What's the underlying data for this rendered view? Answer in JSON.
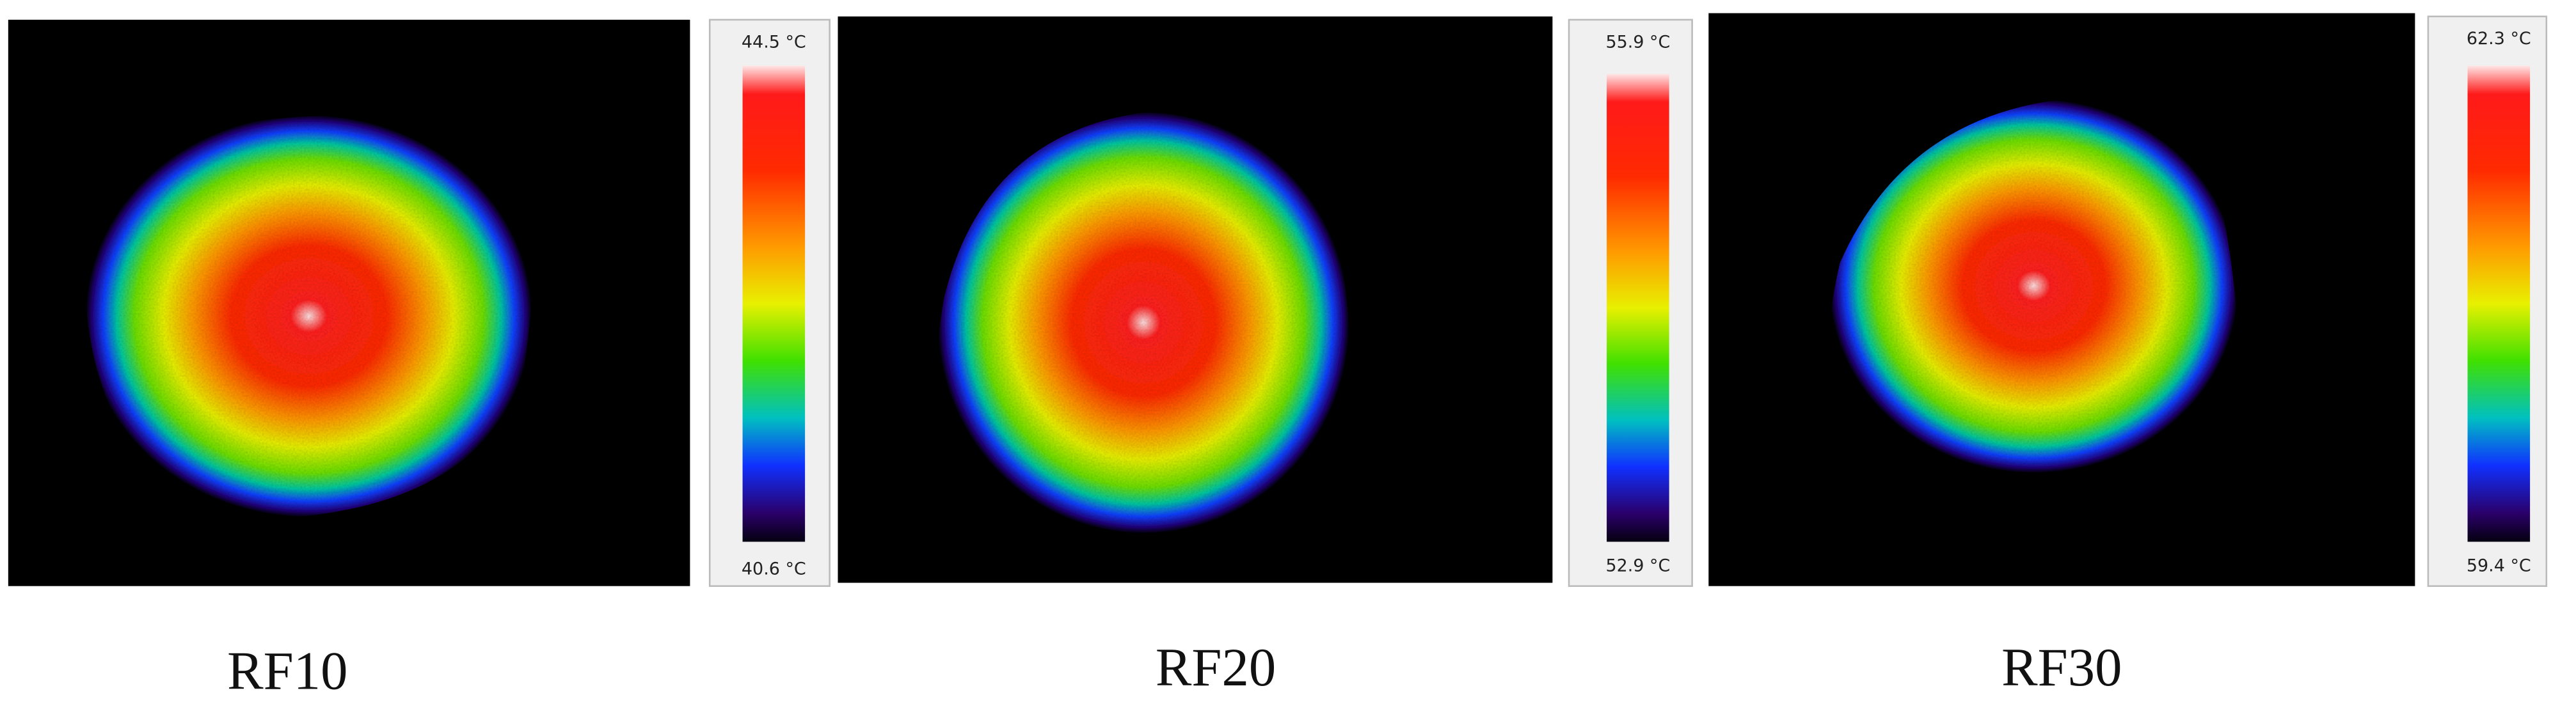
{
  "panels": [
    {
      "label": "RF10",
      "max": "44.5 °C",
      "min": "40.6 °C"
    },
    {
      "label": "RF20",
      "max": "55.9 °C",
      "min": "52.9 °C"
    },
    {
      "label": "RF30",
      "max": "62.3 °C",
      "min": "59.4 °C"
    }
  ]
}
